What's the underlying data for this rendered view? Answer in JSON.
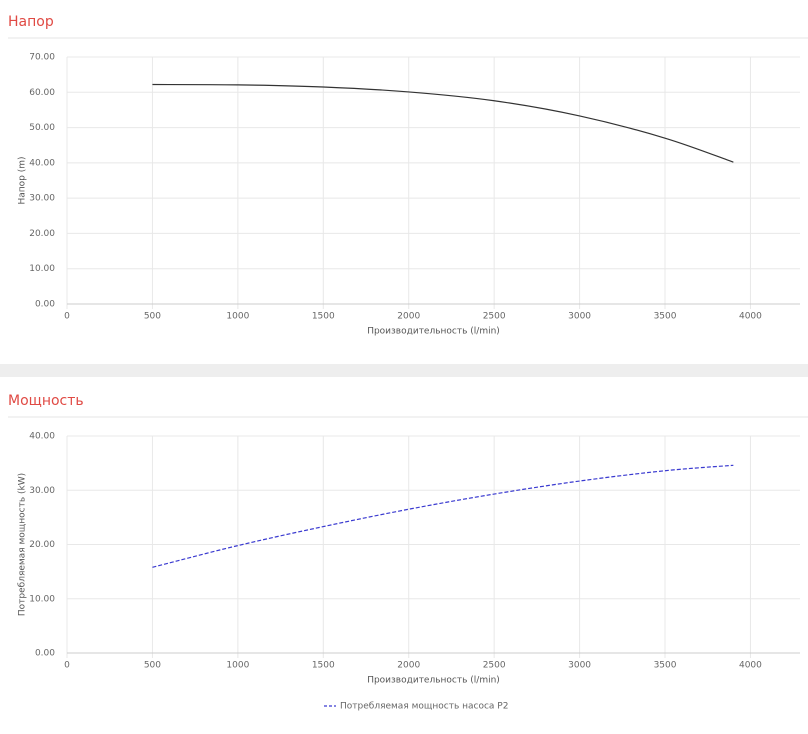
{
  "chart_data": [
    {
      "type": "line",
      "title": "Напор",
      "x_label": "Производительность (l/min)",
      "y_label": "Напор (m)",
      "x": [
        500,
        1000,
        1500,
        2000,
        2500,
        3000,
        3500,
        3900
      ],
      "series": [
        {
          "color": "#333333",
          "values": [
            62.2,
            62.1,
            61.5,
            60.1,
            57.6,
            53.3,
            47.0,
            40.2
          ]
        }
      ],
      "xlim": [
        0,
        4290
      ],
      "ylim": [
        0,
        70
      ],
      "xticks": [
        0,
        500,
        1000,
        1500,
        2000,
        2500,
        3000,
        3500,
        4000
      ],
      "yticks": [
        {
          "value": 0,
          "label": "0.00"
        },
        {
          "value": 10,
          "label": "10.00"
        },
        {
          "value": 20,
          "label": "20.00"
        },
        {
          "value": 30,
          "label": "30.00"
        },
        {
          "value": 40,
          "label": "40.00"
        },
        {
          "value": 50,
          "label": "50.00"
        },
        {
          "value": 60,
          "label": "60.00"
        },
        {
          "value": 70,
          "label": "70.00"
        }
      ],
      "grid": true
    },
    {
      "type": "line",
      "title": "Мощность",
      "x_label": "Производительность (l/min)",
      "y_label": "Потребляемая мощность (kW)",
      "x": [
        500,
        1000,
        1500,
        2000,
        2500,
        3000,
        3500,
        3900
      ],
      "series": [
        {
          "name": "Потребляемая мощность насоса P2",
          "color": "#3a3ad0",
          "dashed": true,
          "values": [
            15.8,
            19.8,
            23.3,
            26.5,
            29.3,
            31.7,
            33.6,
            34.6
          ]
        }
      ],
      "xlim": [
        0,
        4290
      ],
      "ylim": [
        0,
        40
      ],
      "xticks": [
        0,
        500,
        1000,
        1500,
        2000,
        2500,
        3000,
        3500,
        4000
      ],
      "yticks": [
        {
          "value": 0,
          "label": "0.00"
        },
        {
          "value": 10,
          "label": "10.00"
        },
        {
          "value": 20,
          "label": "20.00"
        },
        {
          "value": 30,
          "label": "30.00"
        },
        {
          "value": 40,
          "label": "40.00"
        }
      ],
      "grid": true,
      "legend": "bottom"
    }
  ]
}
